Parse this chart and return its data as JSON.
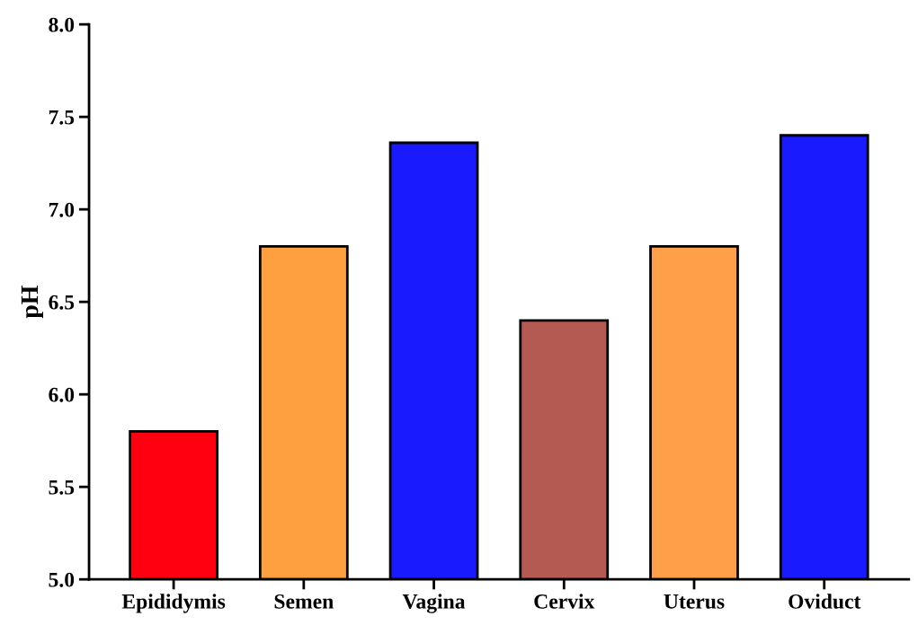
{
  "chart_data": {
    "type": "bar",
    "ylabel": "pH",
    "categories": [
      "Epididymis",
      "Semen",
      "Vagina",
      "Cervix",
      "Uterus",
      "Oviduct"
    ],
    "values": [
      5.8,
      6.8,
      7.36,
      6.4,
      6.8,
      7.4
    ],
    "colors": [
      "#ff0010",
      "#ffa040",
      "#1a1aff",
      "#b55a52",
      "#ff9f4a",
      "#1a1aff"
    ],
    "ylim": [
      5.0,
      8.0
    ],
    "yticks": [
      {
        "value": 5.0,
        "label": "5.0"
      },
      {
        "value": 5.5,
        "label": "5.5"
      },
      {
        "value": 6.0,
        "label": "6.0"
      },
      {
        "value": 6.5,
        "label": "6.5"
      },
      {
        "value": 7.0,
        "label": "7.0"
      },
      {
        "value": 7.5,
        "label": "7.5"
      },
      {
        "value": 8.0,
        "label": "8.0"
      }
    ],
    "grid": false
  }
}
